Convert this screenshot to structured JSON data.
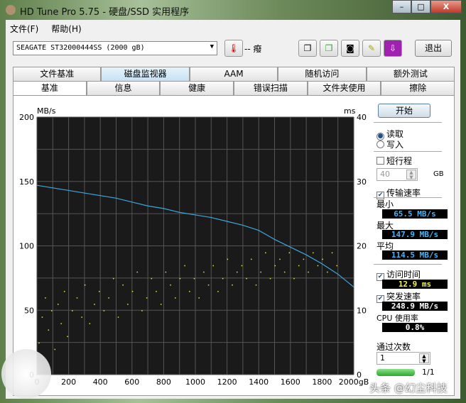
{
  "window": {
    "title": "HD Tune Pro 5.75 - 硬盘/SSD 实用程序",
    "minimize": "–",
    "maximize": "□",
    "close": "X"
  },
  "menu": [
    "文件(F)",
    "帮助(H)"
  ],
  "toolbar": {
    "drive": "SEAGATE ST32000444SS (2000 gB)",
    "temperature": "-- 癈",
    "exit": "退出",
    "icons": [
      "copy-icon",
      "copy-all-icon",
      "screenshot-icon",
      "options-icon",
      "save-icon"
    ]
  },
  "tabs_top": [
    "文件基准",
    "磁盘监视器",
    "AAM",
    "随机访问",
    "额外测试"
  ],
  "tabs_bottom": [
    "基准",
    "信息",
    "健康",
    "错误扫描",
    "文件夹使用",
    "擦除"
  ],
  "active_tab": "基准",
  "side": {
    "start": "开始",
    "read": "读取",
    "write": "写入",
    "read_selected": true,
    "short_stroke": "短行程",
    "short_stroke_checked": false,
    "short_stroke_value": "40",
    "gb": "GB",
    "transfer_rate": "传输速率",
    "min_label": "最小",
    "min": "65.5 MB/s",
    "max_label": "最大",
    "max": "147.9 MB/s",
    "avg_label": "平均",
    "avg": "114.5 MB/s",
    "access_time": "访问时间",
    "access_value": "12.9 ms",
    "burst_rate": "突发速率",
    "burst_value": "248.9 MB/s",
    "cpu_label": "CPU 使用率",
    "cpu_value": "0.8%",
    "passes_label": "通过次数",
    "passes": "1",
    "progress": "1/1",
    "progress_fraction": 1.0
  },
  "watermark": "头条 @幻尘科技",
  "chart_data": {
    "type": "line",
    "ylabel_left": "MB/s",
    "ylabel_right": "ms",
    "xunit": "gB",
    "xlim": [
      0,
      2000
    ],
    "ylim_left": [
      0,
      200
    ],
    "ylim_right": [
      0,
      40
    ],
    "xticks": [
      "0",
      "200",
      "400",
      "600",
      "800",
      "1000",
      "1200",
      "1400",
      "1600",
      "1800",
      "2000gB"
    ],
    "yticks_left": [
      "0",
      "50",
      "100",
      "150",
      "200"
    ],
    "yticks_right": [
      "0",
      "10",
      "20",
      "30",
      "40"
    ],
    "grid": true,
    "colors": {
      "transfer": "#3aa8e0",
      "access": "#e8e830",
      "background": "#1a1a1a"
    },
    "transfer_rate": {
      "x": [
        0,
        100,
        200,
        300,
        400,
        500,
        600,
        700,
        800,
        900,
        1000,
        1100,
        1200,
        1300,
        1400,
        1500,
        1600,
        1700,
        1800,
        1900,
        2000
      ],
      "y": [
        147,
        145,
        143,
        141,
        139,
        137,
        134,
        131,
        129,
        126,
        124,
        122,
        119,
        116,
        112,
        105,
        99,
        93,
        86,
        78,
        68
      ]
    },
    "access_time": {
      "x": [
        10,
        30,
        50,
        70,
        90,
        110,
        130,
        150,
        170,
        190,
        220,
        250,
        280,
        300,
        330,
        360,
        390,
        420,
        450,
        480,
        510,
        540,
        570,
        600,
        630,
        660,
        690,
        720,
        750,
        780,
        810,
        840,
        870,
        900,
        930,
        960,
        990,
        1020,
        1050,
        1080,
        1110,
        1140,
        1170,
        1200,
        1230,
        1260,
        1290,
        1320,
        1350,
        1380,
        1410,
        1440,
        1470,
        1500,
        1530,
        1560,
        1590,
        1620,
        1650,
        1680,
        1710,
        1740,
        1770,
        1800,
        1830,
        1860,
        1890
      ],
      "y": [
        5,
        9,
        12,
        7,
        10,
        4,
        11,
        8,
        13,
        6,
        10,
        12,
        9,
        14,
        8,
        11,
        13,
        10,
        12,
        15,
        9,
        14,
        11,
        13,
        16,
        10,
        12,
        15,
        13,
        11,
        16,
        14,
        12,
        15,
        17,
        13,
        15,
        12,
        16,
        14,
        17,
        13,
        15,
        18,
        14,
        16,
        17,
        15,
        18,
        14,
        16,
        19,
        15,
        17,
        18,
        16,
        19,
        15,
        17,
        18,
        16,
        19,
        17,
        18,
        16,
        19,
        17
      ]
    }
  }
}
